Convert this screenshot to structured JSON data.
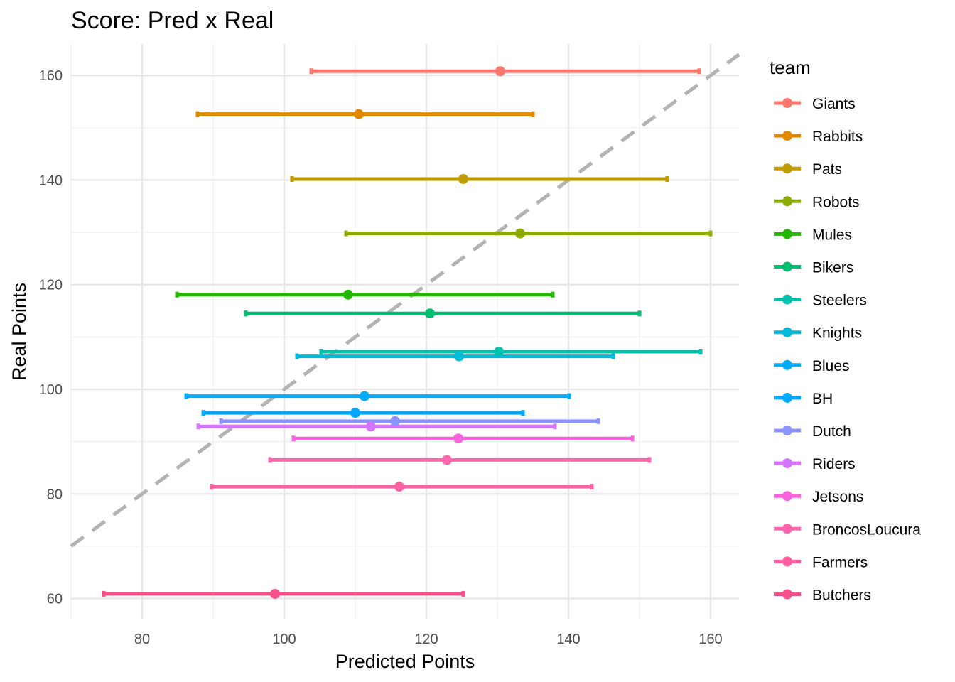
{
  "chart_data": {
    "type": "errorbar-scatter",
    "title": "Score: Pred x Real",
    "xlabel": "Predicted Points",
    "ylabel": "Real Points",
    "xlim": [
      70,
      164
    ],
    "ylim": [
      56,
      166
    ],
    "x_ticks": [
      80,
      100,
      120,
      140,
      160
    ],
    "y_ticks": [
      60,
      80,
      100,
      120,
      140,
      160
    ],
    "x_tick_labels": [
      "80",
      "100",
      "120",
      "140",
      "160"
    ],
    "y_tick_labels": [
      "60",
      "80",
      "100",
      "120",
      "140",
      "160"
    ],
    "grid": true,
    "reference_line": {
      "type": "identity",
      "style": "dashed",
      "color": "#b3b3b3"
    },
    "legend": {
      "title": "team",
      "position": "right"
    },
    "series": [
      {
        "name": "Giants",
        "color": "#F8766D",
        "x": 130.4,
        "y": 160.8,
        "xmin": 103.8,
        "xmax": 158.4
      },
      {
        "name": "Rabbits",
        "color": "#E18A00",
        "x": 110.5,
        "y": 152.6,
        "xmin": 87.8,
        "xmax": 135.0
      },
      {
        "name": "Pats",
        "color": "#BE9C00",
        "x": 125.2,
        "y": 140.2,
        "xmin": 101.1,
        "xmax": 153.9
      },
      {
        "name": "Robots",
        "color": "#8CAB00",
        "x": 133.2,
        "y": 129.8,
        "xmin": 108.7,
        "xmax": 160.0
      },
      {
        "name": "Mules",
        "color": "#24B700",
        "x": 109.0,
        "y": 118.1,
        "xmin": 84.9,
        "xmax": 137.8
      },
      {
        "name": "Bikers",
        "color": "#00BE70",
        "x": 120.5,
        "y": 114.5,
        "xmin": 94.6,
        "xmax": 150.0
      },
      {
        "name": "Steelers",
        "color": "#00C1AB",
        "x": 130.2,
        "y": 107.2,
        "xmin": 105.2,
        "xmax": 158.6
      },
      {
        "name": "Knights",
        "color": "#00BBDA",
        "x": 124.6,
        "y": 106.3,
        "xmin": 101.8,
        "xmax": 146.3
      },
      {
        "name": "Blues",
        "color": "#00ACFC",
        "x": 111.3,
        "y": 98.7,
        "xmin": 86.2,
        "xmax": 140.1
      },
      {
        "name": "BH",
        "color": "#00A9FF",
        "x": 110.0,
        "y": 95.5,
        "xmin": 88.6,
        "xmax": 133.6
      },
      {
        "name": "Dutch",
        "color": "#8B93FF",
        "x": 115.6,
        "y": 93.9,
        "xmin": 91.1,
        "xmax": 144.2
      },
      {
        "name": "Riders",
        "color": "#D575FE",
        "x": 112.2,
        "y": 92.9,
        "xmin": 87.9,
        "xmax": 138.1
      },
      {
        "name": "Jetsons",
        "color": "#F962DD",
        "x": 124.5,
        "y": 90.6,
        "xmin": 101.3,
        "xmax": 149.0
      },
      {
        "name": "BroncosLoucura",
        "color": "#FF65AC",
        "x": 122.9,
        "y": 86.5,
        "xmin": 98.0,
        "xmax": 151.4
      },
      {
        "name": "Farmers",
        "color": "#FF5FA0",
        "x": 116.2,
        "y": 81.4,
        "xmin": 89.8,
        "xmax": 143.3
      },
      {
        "name": "Butchers",
        "color": "#F8508A",
        "x": 98.7,
        "y": 60.9,
        "xmin": 74.6,
        "xmax": 125.2
      }
    ]
  }
}
